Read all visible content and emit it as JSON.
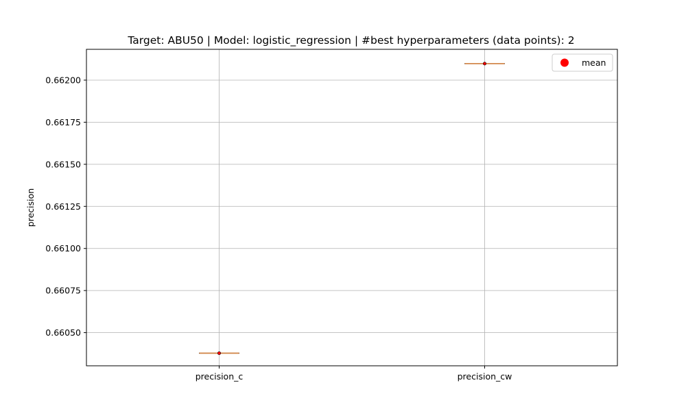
{
  "chart_data": {
    "type": "box",
    "title": "Target: ABU50 | Model: logistic_regression | #best hyperparameters (data points): 2",
    "xlabel": "",
    "ylabel": "precision",
    "categories": [
      "precision_c",
      "precision_cw"
    ],
    "boxes": [
      {
        "name": "precision_c",
        "min": 0.660378,
        "q1": 0.660378,
        "median": 0.660378,
        "q3": 0.660378,
        "max": 0.660378,
        "mean": 0.660378
      },
      {
        "name": "precision_cw",
        "min": 0.662098,
        "q1": 0.662098,
        "median": 0.662098,
        "q3": 0.662098,
        "max": 0.662098,
        "mean": 0.662098
      }
    ],
    "ylim": [
      0.660303,
      0.662183
    ],
    "yticks": [
      0.6605,
      0.66075,
      0.661,
      0.66125,
      0.6615,
      0.66175,
      0.662
    ],
    "ytick_labels": [
      "0.66050",
      "0.66075",
      "0.66100",
      "0.66125",
      "0.66150",
      "0.66175",
      "0.66200"
    ],
    "grid": true,
    "legend": {
      "position": "top-right",
      "entries": [
        {
          "label": "mean",
          "marker": "circle",
          "color": "#ff0000"
        }
      ]
    },
    "colors": {
      "median": "#d2874a",
      "mean": "#ff0000",
      "grid": "#b0b0b0",
      "whisker": "#000000"
    }
  }
}
